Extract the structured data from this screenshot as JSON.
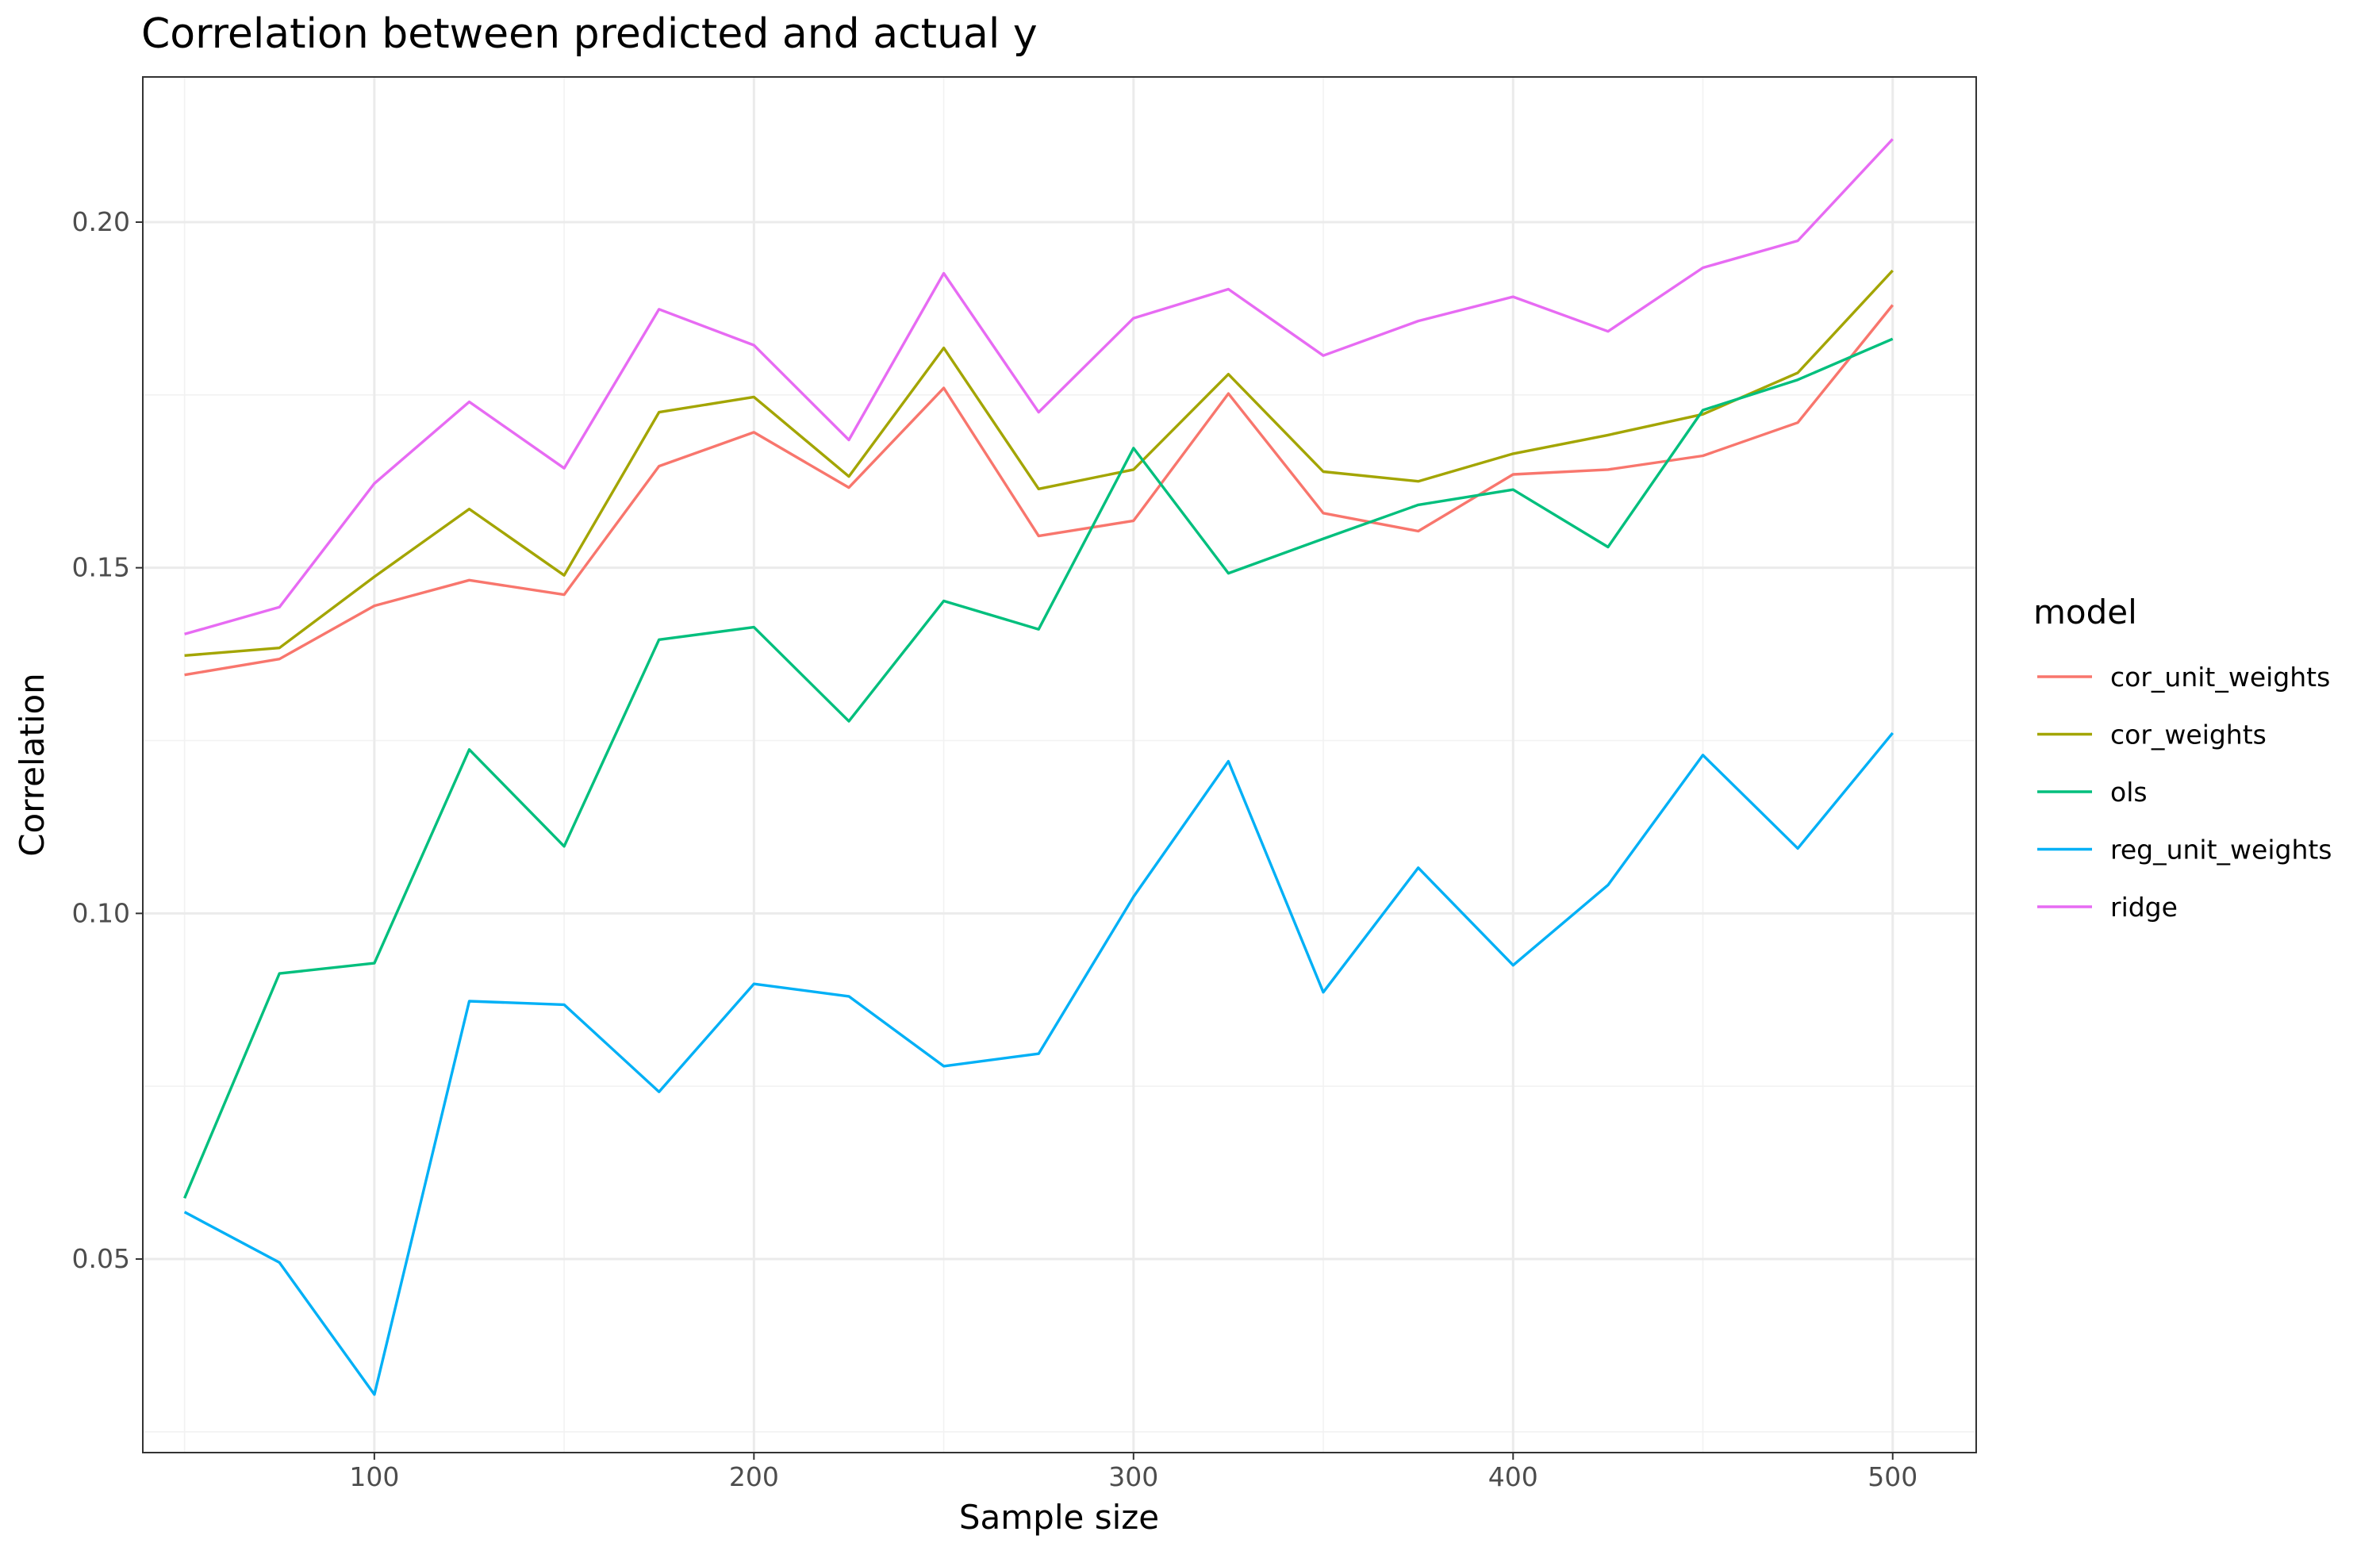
{
  "chart_data": {
    "type": "line",
    "title": "Correlation between predicted and actual y",
    "xlabel": "Sample size",
    "ylabel": "Correlation",
    "xlim": [
      39,
      522
    ],
    "ylim": [
      0.022,
      0.221
    ],
    "x_ticks": [
      100,
      200,
      300,
      400,
      500
    ],
    "x_tick_labels": [
      "100",
      "200",
      "300",
      "400",
      "500"
    ],
    "y_ticks": [
      0.05,
      0.1,
      0.15,
      0.2
    ],
    "y_tick_labels": [
      "0.05",
      "0.10",
      "0.15",
      "0.20"
    ],
    "grid": true,
    "legend": {
      "title": "model",
      "position": "right"
    },
    "x": [
      50,
      75,
      100,
      125,
      150,
      175,
      200,
      225,
      250,
      275,
      300,
      325,
      350,
      375,
      400,
      425,
      450,
      475,
      500
    ],
    "series": [
      {
        "name": "cor_unit_weights",
        "color": "#F8766D",
        "values": [
          0.1345,
          0.1368,
          0.1445,
          0.1482,
          0.1461,
          0.1647,
          0.1696,
          0.1616,
          0.176,
          0.1546,
          0.1568,
          0.1752,
          0.1579,
          0.1553,
          0.1635,
          0.1642,
          0.1662,
          0.171,
          0.188
        ]
      },
      {
        "name": "cor_weights",
        "color": "#A3A500",
        "values": [
          0.1373,
          0.1384,
          0.1487,
          0.1585,
          0.1489,
          0.1725,
          0.1747,
          0.1632,
          0.1818,
          0.1614,
          0.1642,
          0.178,
          0.1639,
          0.1625,
          0.1665,
          0.1692,
          0.1722,
          0.1782,
          0.193
        ]
      },
      {
        "name": "ols",
        "color": "#00BF7D",
        "values": [
          0.0588,
          0.0913,
          0.0928,
          0.1237,
          0.1097,
          0.1396,
          0.1414,
          0.1278,
          0.1452,
          0.1411,
          0.1673,
          0.1492,
          0.1542,
          0.1591,
          0.1613,
          0.153,
          0.1728,
          0.1772,
          0.1831
        ]
      },
      {
        "name": "reg_unit_weights",
        "color": "#00B0F6",
        "values": [
          0.0568,
          0.0495,
          0.0304,
          0.0873,
          0.0868,
          0.0742,
          0.0898,
          0.088,
          0.0779,
          0.0797,
          0.1024,
          0.122,
          0.0886,
          0.1066,
          0.0925,
          0.1041,
          0.1229,
          0.1094,
          0.1261
        ]
      },
      {
        "name": "ridge",
        "color": "#E76BF3",
        "values": [
          0.1404,
          0.1443,
          0.1622,
          0.174,
          0.1644,
          0.1874,
          0.1822,
          0.1685,
          0.1926,
          0.1725,
          0.1861,
          0.1903,
          0.1807,
          0.1857,
          0.1892,
          0.1842,
          0.1934,
          0.1973,
          0.212
        ]
      }
    ]
  }
}
